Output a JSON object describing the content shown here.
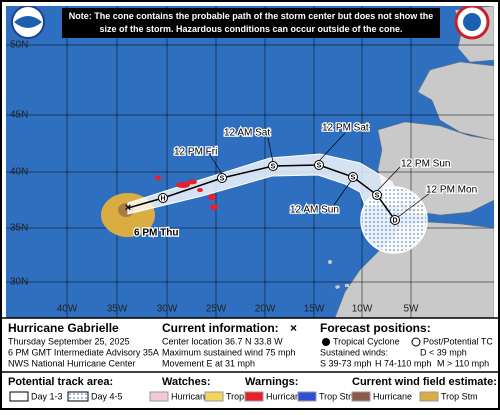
{
  "note": "Note: The cone contains the probable path of the storm center but does not show the size of the storm. Hazardous conditions can occur outside of the cone.",
  "map": {
    "lat_labels": [
      "50N",
      "45N",
      "40N",
      "35N",
      "30N"
    ],
    "lon_labels": [
      "40W",
      "35W",
      "30W",
      "25W",
      "20W",
      "15W",
      "10W",
      "5W"
    ],
    "time_labels": [
      "12 PM Fri",
      "12 AM Sat",
      "12 PM Sat",
      "12 PM Sun",
      "12 AM Sun",
      "12 PM Mon",
      "6 PM Thu"
    ],
    "point_letters": [
      "H",
      "S",
      "S",
      "S",
      "S",
      "S",
      "D"
    ]
  },
  "storm": {
    "name": "Hurricane Gabrielle",
    "date": "Thursday September 25, 2025",
    "advisory": "6 PM GMT Intermediate Advisory 35A",
    "center": "NWS National Hurricane Center"
  },
  "current": {
    "title": "Current information:",
    "symbol": "×",
    "location": "Center location 36.7 N 33.8 W",
    "wind": "Maximum sustained wind 75 mph",
    "movement": "Movement E at 31 mph"
  },
  "forecast": {
    "title": "Forecast positions:",
    "tc": "Tropical Cyclone",
    "ptc": "Post/Potential TC",
    "winds_title": "Sustained winds:",
    "d": "D < 39 mph",
    "s": "S 39-73 mph",
    "h": "H 74-110 mph",
    "m": "M > 110 mph"
  },
  "legend": {
    "track_title": "Potential track area:",
    "day13": "Day 1-3",
    "day45": "Day 4-5",
    "watches_title": "Watches:",
    "watch_hurricane": "Hurricane",
    "watch_ts": "Trop Stm",
    "warnings_title": "Warnings:",
    "warning_hurricane": "Hurricane",
    "warning_ts": "Trop Stm",
    "wind_title": "Current wind field estimate:",
    "wind_hurricane": "Hurricane",
    "wind_ts": "Trop Stm"
  }
}
